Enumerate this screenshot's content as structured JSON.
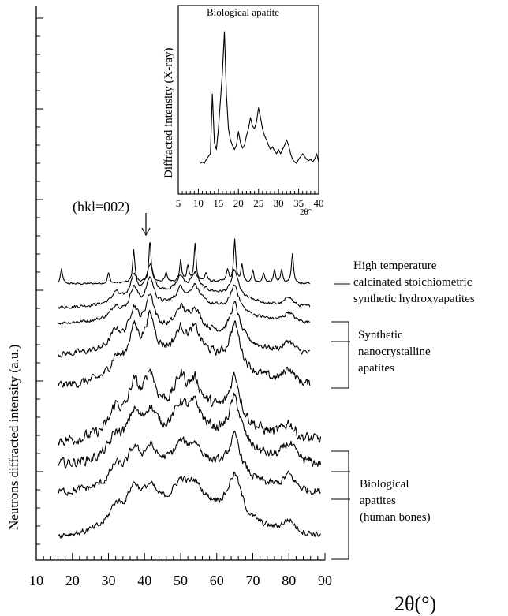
{
  "chart_data": [
    {
      "type": "line",
      "title": "",
      "xlabel": "2θ(°)",
      "ylabel": "Neutrons diffracted intensity (a.u.)",
      "xlim": [
        10,
        90
      ],
      "x_ticks": [
        10,
        20,
        30,
        40,
        50,
        60,
        70,
        80,
        90
      ],
      "grid": false,
      "annotation": "(hkl=002)",
      "annotation_x": 41.5,
      "series": [
        {
          "peaks": [
            [
              17,
              0.35
            ],
            [
              30,
              0.25
            ],
            [
              37,
              0.8
            ],
            [
              41.5,
              1.0
            ],
            [
              46,
              0.2
            ],
            [
              50,
              0.5
            ],
            [
              52,
              0.35
            ],
            [
              54,
              0.9
            ],
            [
              57,
              0.2
            ],
            [
              63,
              0.3
            ],
            [
              65,
              1.0
            ],
            [
              67,
              0.4
            ],
            [
              70,
              0.3
            ],
            [
              73,
              0.25
            ],
            [
              76,
              0.3
            ],
            [
              78,
              0.35
            ],
            [
              81,
              0.7
            ]
          ],
          "width": 0.35,
          "noise": 0.03,
          "hump": 0.05
        },
        {
          "peaks": [
            [
              32,
              0.3
            ],
            [
              37,
              0.7
            ],
            [
              41.5,
              0.9
            ],
            [
              50,
              0.4
            ],
            [
              54,
              0.5
            ],
            [
              65,
              0.8
            ],
            [
              80,
              0.3
            ]
          ],
          "width": 1.2,
          "noise": 0.06,
          "hump": 0.4
        },
        {
          "peaks": [
            [
              32,
              0.35
            ],
            [
              37,
              0.75
            ],
            [
              41.5,
              0.9
            ],
            [
              50,
              0.45
            ],
            [
              54,
              0.55
            ],
            [
              65,
              0.8
            ],
            [
              80,
              0.3
            ]
          ],
          "width": 1.4,
          "noise": 0.07,
          "hump": 0.45
        },
        {
          "peaks": [
            [
              32,
              0.4
            ],
            [
              37,
              0.8
            ],
            [
              41.5,
              1.0
            ],
            [
              50,
              0.5
            ],
            [
              54,
              0.5
            ],
            [
              65,
              0.9
            ],
            [
              80,
              0.3
            ]
          ],
          "width": 1.6,
          "noise": 0.1,
          "hump": 0.5
        },
        {
          "peaks": [
            [
              32,
              0.4
            ],
            [
              37,
              0.9
            ],
            [
              41.5,
              1.0
            ],
            [
              50,
              0.5
            ],
            [
              54,
              0.5
            ],
            [
              65,
              1.0
            ],
            [
              80,
              0.35
            ]
          ],
          "width": 1.8,
          "noise": 0.13,
          "hump": 0.6
        },
        {
          "peaks": [
            [
              32,
              0.5
            ],
            [
              37,
              0.8
            ],
            [
              41.5,
              0.9
            ],
            [
              50,
              0.6
            ],
            [
              54,
              0.5
            ],
            [
              65,
              1.0
            ],
            [
              80,
              0.35
            ]
          ],
          "width": 1.8,
          "noise": 0.16,
          "hump": 0.6
        },
        {
          "peaks": [
            [
              32,
              0.4
            ],
            [
              37,
              0.7
            ],
            [
              41.5,
              0.6
            ],
            [
              50,
              0.5
            ],
            [
              54,
              0.5
            ],
            [
              65,
              1.0
            ],
            [
              80,
              0.4
            ]
          ],
          "width": 2.0,
          "noise": 0.14,
          "hump": 0.6
        },
        {
          "peaks": [
            [
              32,
              0.4
            ],
            [
              37,
              0.6
            ],
            [
              41.5,
              0.5
            ],
            [
              50,
              0.4
            ],
            [
              54,
              0.4
            ],
            [
              65,
              0.9
            ],
            [
              80,
              0.35
            ]
          ],
          "width": 2.0,
          "noise": 0.12,
          "hump": 0.55
        },
        {
          "peaks": [
            [
              32,
              0.45
            ],
            [
              37,
              0.7
            ],
            [
              41.5,
              0.5
            ],
            [
              50,
              0.45
            ],
            [
              54,
              0.4
            ],
            [
              65,
              1.0
            ],
            [
              80,
              0.3
            ]
          ],
          "width": 2.2,
          "noise": 0.1,
          "hump": 0.6
        }
      ],
      "groups": [
        {
          "label_lines": [
            "High temperature",
            "calcinated stoichiometric",
            "synthetic hydroxyapatites"
          ]
        },
        {
          "label_lines": [
            "Synthetic",
            "nanocrystalline",
            "apatites"
          ]
        },
        {
          "label_lines": [
            "Biological",
            "apatites",
            "(human bones)"
          ]
        }
      ]
    },
    {
      "type": "line",
      "title": "Biological apatite",
      "xlabel": "2θ°",
      "ylabel": "Diffracted intensity (X-ray)",
      "xlim": [
        5,
        40
      ],
      "x_ticks": [
        5,
        10,
        15,
        20,
        25,
        30,
        35,
        40
      ],
      "x": [
        10.5,
        11,
        11.5,
        12,
        12.5,
        13,
        13.5,
        14,
        14.5,
        15,
        15.5,
        16,
        16.5,
        17,
        17.5,
        18,
        18.5,
        19,
        19.5,
        20,
        20.5,
        21,
        21.5,
        22,
        22.5,
        23,
        23.5,
        24,
        24.5,
        25,
        25.5,
        26,
        26.5,
        27,
        27.5,
        28,
        28.5,
        29,
        29.5,
        30,
        30.5,
        31,
        31.5,
        32,
        32.5,
        33,
        33.5,
        34,
        34.5,
        35,
        35.5,
        36,
        36.5,
        37,
        37.5,
        38,
        38.5,
        39,
        39.5,
        40
      ],
      "y": [
        0.05,
        0.06,
        0.05,
        0.08,
        0.1,
        0.12,
        0.55,
        0.2,
        0.15,
        0.3,
        0.5,
        0.7,
        1.0,
        0.55,
        0.3,
        0.22,
        0.18,
        0.15,
        0.18,
        0.28,
        0.2,
        0.16,
        0.18,
        0.25,
        0.3,
        0.38,
        0.32,
        0.3,
        0.35,
        0.45,
        0.38,
        0.3,
        0.25,
        0.22,
        0.18,
        0.15,
        0.17,
        0.14,
        0.12,
        0.15,
        0.12,
        0.15,
        0.18,
        0.22,
        0.18,
        0.12,
        0.08,
        0.06,
        0.05,
        0.08,
        0.1,
        0.12,
        0.1,
        0.08,
        0.07,
        0.08,
        0.06,
        0.08,
        0.12,
        0.06
      ]
    }
  ]
}
